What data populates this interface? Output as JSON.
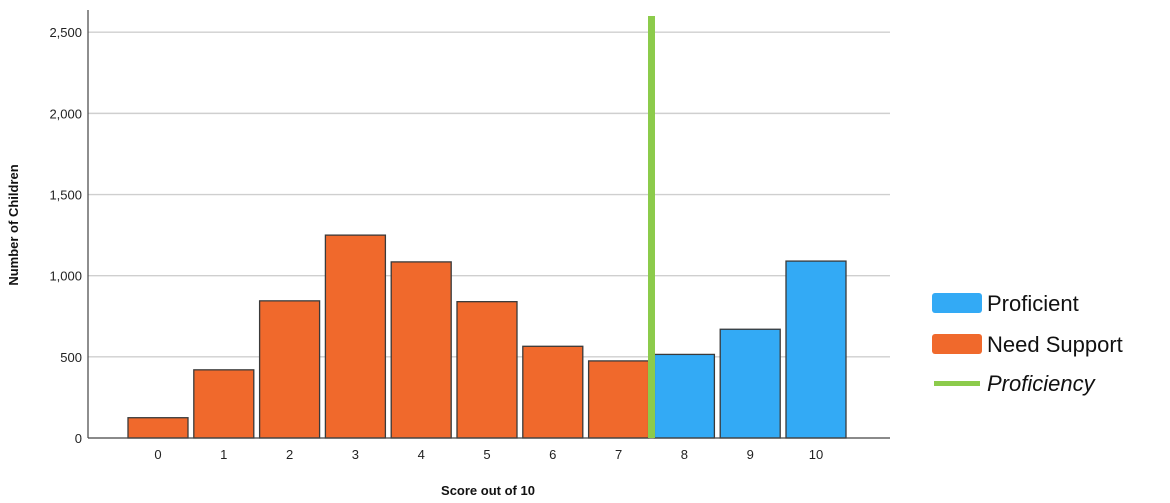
{
  "chart_data": {
    "type": "bar",
    "xlabel": "Score out of 10",
    "ylabel": "Number of Children",
    "categories": [
      "0",
      "1",
      "2",
      "3",
      "4",
      "5",
      "6",
      "7",
      "8",
      "9",
      "10"
    ],
    "values": [
      125,
      420,
      845,
      1250,
      1085,
      840,
      565,
      475,
      515,
      670,
      1090
    ],
    "groups": [
      "Need Support",
      "Need Support",
      "Need Support",
      "Need Support",
      "Need Support",
      "Need Support",
      "Need Support",
      "Need Support",
      "Proficient",
      "Proficient",
      "Proficient"
    ],
    "ylim": [
      0,
      2600
    ],
    "yticks": [
      {
        "value": 0,
        "label": "0"
      },
      {
        "value": 500,
        "label": "500"
      },
      {
        "value": 1000,
        "label": "1,000"
      },
      {
        "value": 1500,
        "label": "1,500"
      },
      {
        "value": 2000,
        "label": "2,000"
      },
      {
        "value": 2500,
        "label": "2,500"
      }
    ],
    "grid": true,
    "threshold": {
      "name": "Proficiency",
      "x_between": [
        "7",
        "8"
      ],
      "color": "#8CCB4B"
    },
    "legend": {
      "placement": "right",
      "items": [
        {
          "label": "Proficient",
          "color": "#33AAF5",
          "kind": "box"
        },
        {
          "label": "Need Support",
          "color": "#F0692C",
          "kind": "box"
        },
        {
          "label": "Proficiency",
          "color": "#8CCB4B",
          "kind": "line",
          "italic": true
        }
      ]
    },
    "colors": {
      "Need Support": "#F0692C",
      "Proficient": "#33AAF5",
      "bar_outline": "#3a3a3a",
      "grid": "#cfcfcf"
    }
  }
}
